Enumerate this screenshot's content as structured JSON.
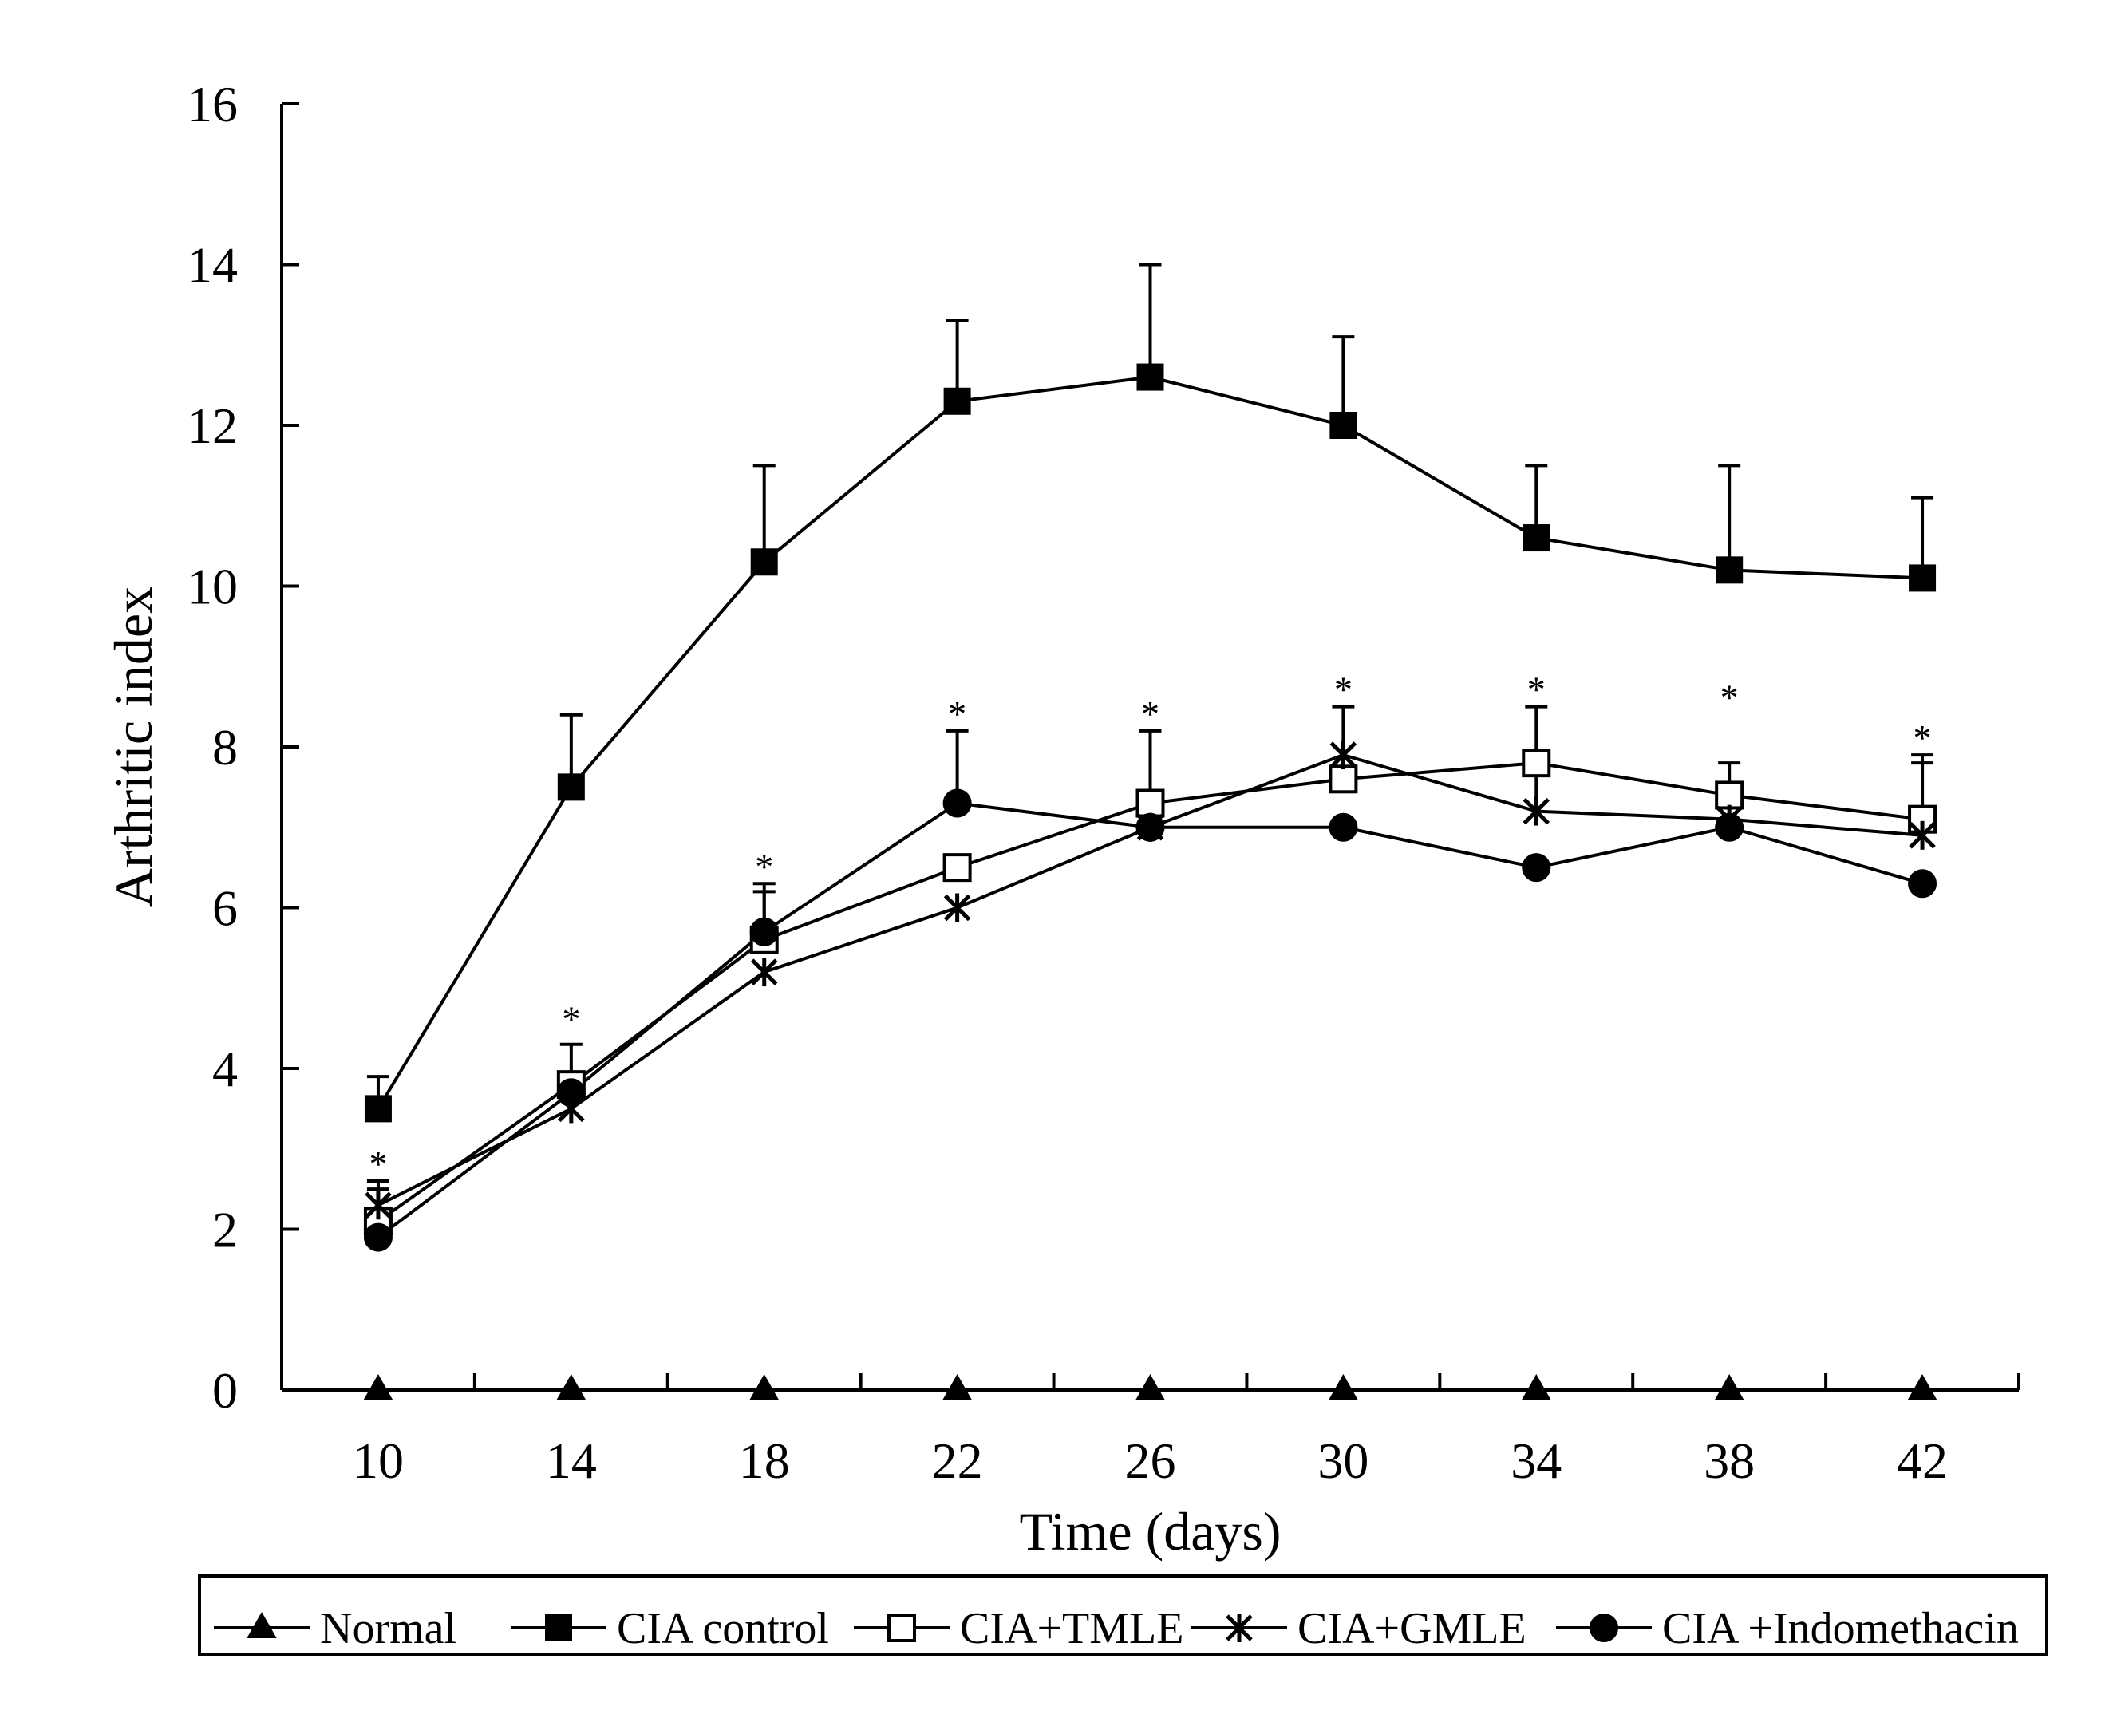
{
  "chart_data": {
    "type": "line",
    "title": "",
    "xlabel": "Time (days)",
    "ylabel": "Arthritic index",
    "x": [
      10,
      14,
      18,
      22,
      26,
      30,
      34,
      38,
      42
    ],
    "x_tick_labels": [
      "10",
      "14",
      "18",
      "22",
      "26",
      "30",
      "34",
      "38",
      "42"
    ],
    "ylim": [
      0,
      16
    ],
    "y_ticks": [
      0,
      2,
      4,
      6,
      8,
      10,
      12,
      14,
      16
    ],
    "y_tick_labels": [
      "0",
      "2",
      "4",
      "6",
      "8",
      "10",
      "12",
      "14",
      "16"
    ],
    "grid": false,
    "legend_position": "bottom",
    "series": [
      {
        "name": "Normal",
        "marker": "triangle-filled",
        "values": [
          0,
          0,
          0,
          0,
          0,
          0,
          0,
          0,
          0
        ],
        "errors": [
          0,
          0,
          0,
          0,
          0,
          0,
          0,
          0,
          0
        ]
      },
      {
        "name": "CIA control",
        "marker": "square-filled",
        "values": [
          3.5,
          7.5,
          10.3,
          12.3,
          12.6,
          12.0,
          10.6,
          10.2,
          10.1
        ],
        "errors": [
          0.4,
          0.9,
          1.2,
          1.0,
          1.4,
          1.1,
          0.9,
          1.3,
          1.0
        ]
      },
      {
        "name": "CIA+TMLE",
        "marker": "square-open",
        "values": [
          2.1,
          3.8,
          5.6,
          6.5,
          7.3,
          7.6,
          7.8,
          7.4,
          7.1
        ],
        "errors": [
          0.4,
          0.5,
          0.7,
          0.0,
          0.9,
          0.0,
          0.0,
          0.4,
          0.7
        ]
      },
      {
        "name": "CIA+GMLE",
        "marker": "asterisk",
        "values": [
          2.3,
          3.5,
          5.2,
          6.0,
          7.0,
          7.9,
          7.2,
          7.1,
          6.9
        ],
        "errors": [
          0.3,
          0.0,
          0.0,
          0.0,
          0.0,
          0.6,
          1.3,
          0.0,
          1.0
        ]
      },
      {
        "name": "CIA +Indomethacin",
        "marker": "circle-filled",
        "values": [
          1.9,
          3.7,
          5.7,
          7.3,
          7.0,
          7.0,
          6.5,
          7.0,
          6.3
        ],
        "errors": [
          0.0,
          0.0,
          0.5,
          0.9,
          0.0,
          0.0,
          0.0,
          0.0,
          0.0
        ]
      }
    ],
    "annotations": [
      {
        "x": 10,
        "y": 2.6,
        "text": "*"
      },
      {
        "x": 14,
        "y": 4.4,
        "text": "*"
      },
      {
        "x": 18,
        "y": 6.3,
        "text": "*"
      },
      {
        "x": 22,
        "y": 8.2,
        "text": "*"
      },
      {
        "x": 26,
        "y": 8.2,
        "text": "*"
      },
      {
        "x": 30,
        "y": 8.5,
        "text": "*"
      },
      {
        "x": 34,
        "y": 8.5,
        "text": "*"
      },
      {
        "x": 38,
        "y": 8.4,
        "text": "*"
      },
      {
        "x": 42,
        "y": 7.9,
        "text": "*"
      }
    ]
  }
}
